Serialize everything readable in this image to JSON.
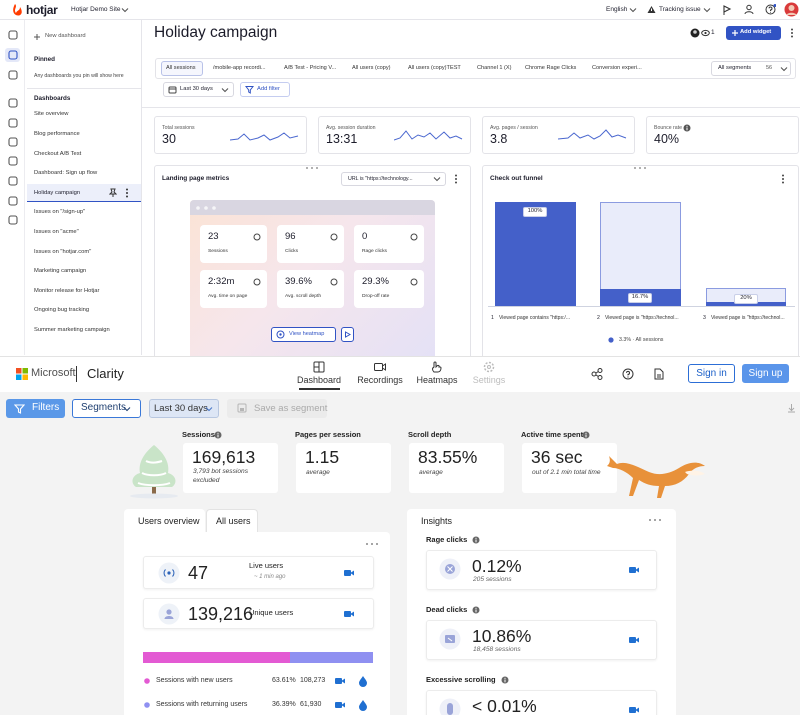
{
  "hotjar": {
    "topbar": {
      "logo": "hotjar",
      "site": "Hotjar Demo Site",
      "language": "English",
      "tracking": "Tracking issue"
    },
    "sidebar": {
      "new_dashboard": "New dashboard",
      "pinned": "Pinned",
      "pinned_note": "Any dashboards you pin will show here",
      "dashboards": "Dashboards",
      "items": [
        "Site overview",
        "Blog performance",
        "Checkout A/B Test",
        "Dashboard: Sign up flow",
        "Holiday campaign",
        "Issues on \"/sign-up\"",
        "Issues on \"acme\"",
        "Issues on \"hotjar.com\"",
        "Marketing campaign",
        "Monitor release for Hotjar",
        "Ongoing bug tracking",
        "Summer marketing campaign"
      ]
    },
    "header": {
      "title": "Holiday campaign",
      "collaborators": "1",
      "add_widget": "Add widget"
    },
    "segments": {
      "tabs": [
        "All sessions",
        "/mobile-app recordi...",
        "A/B Test - Pricing V...",
        "All users (copy)",
        "All users (copy)TEST",
        "Channel 1 (X)",
        "Chrome Rage Clicks",
        "Conversion experi..."
      ],
      "all_segments": "All segments",
      "count": "56"
    },
    "filters": {
      "date": "Last 30 days",
      "add_filter": "Add filter"
    },
    "stats": [
      {
        "label": "Total sessions",
        "value": "30"
      },
      {
        "label": "Avg. session duration",
        "value": "13:31"
      },
      {
        "label": "Avg. pages / session",
        "value": "3.8"
      },
      {
        "label": "Bounce rate",
        "value": "40%"
      }
    ],
    "landing": {
      "title": "Landing page metrics",
      "url_filter": "URL is \"https://technology...",
      "tiles": [
        {
          "value": "23",
          "label": "Sessions"
        },
        {
          "value": "96",
          "label": "Clicks"
        },
        {
          "value": "0",
          "label": "Rage clicks"
        },
        {
          "value": "2:32m",
          "label": "Avg. time on page"
        },
        {
          "value": "39.6%",
          "label": "Avg. scroll depth"
        },
        {
          "value": "29.3%",
          "label": "Drop-off rate"
        }
      ],
      "view_heatmap": "View heatmap"
    },
    "funnel": {
      "title": "Check out funnel",
      "bars": [
        "100%",
        "16.7%",
        "20%"
      ],
      "steps": [
        {
          "number": "1",
          "label": "Viewed page contains \"https:/..."
        },
        {
          "number": "2",
          "label": "Viewed page is \"https://technol..."
        },
        {
          "number": "3",
          "label": "Viewed page is \"https://technol..."
        }
      ],
      "legend": "3.3% · All sessions"
    }
  },
  "clarity": {
    "brand": {
      "company": "Microsoft",
      "product": "Clarity"
    },
    "nav": [
      "Dashboard",
      "Recordings",
      "Heatmaps",
      "Settings"
    ],
    "sign_in": "Sign in",
    "sign_up": "Sign up",
    "toolbar": {
      "filters": "Filters",
      "segments": "Segments",
      "date": "Last 30 days",
      "save": "Save as segment"
    },
    "metrics": [
      {
        "label": "Sessions",
        "value": "169,613",
        "note": "3,793 bot sessions excluded"
      },
      {
        "label": "Pages per session",
        "value": "1.15",
        "note": "average"
      },
      {
        "label": "Scroll depth",
        "value": "83.55%",
        "note": "average"
      },
      {
        "label": "Active time spent",
        "value": "36 sec",
        "note": "out of 2.1 min total time"
      }
    ],
    "users": {
      "tabs": [
        "Users overview",
        "All users"
      ],
      "live": {
        "value": "47",
        "label": "Live users",
        "note": "~ 1 min ago"
      },
      "unique": {
        "value": "139,216",
        "label": "Unique users"
      },
      "rows": [
        {
          "label": "Sessions with new users",
          "percent": "63.61%",
          "count": "108,273"
        },
        {
          "label": "Sessions with returning users",
          "percent": "36.39%",
          "count": "61,930"
        }
      ]
    },
    "insights": {
      "title": "Insights",
      "items": [
        {
          "label": "Rage clicks",
          "value": "0.12%",
          "note": "205 sessions"
        },
        {
          "label": "Dead clicks",
          "value": "10.86%",
          "note": "18,458 sessions"
        },
        {
          "label": "Excessive scrolling",
          "value": "< 0.01%"
        }
      ]
    }
  }
}
